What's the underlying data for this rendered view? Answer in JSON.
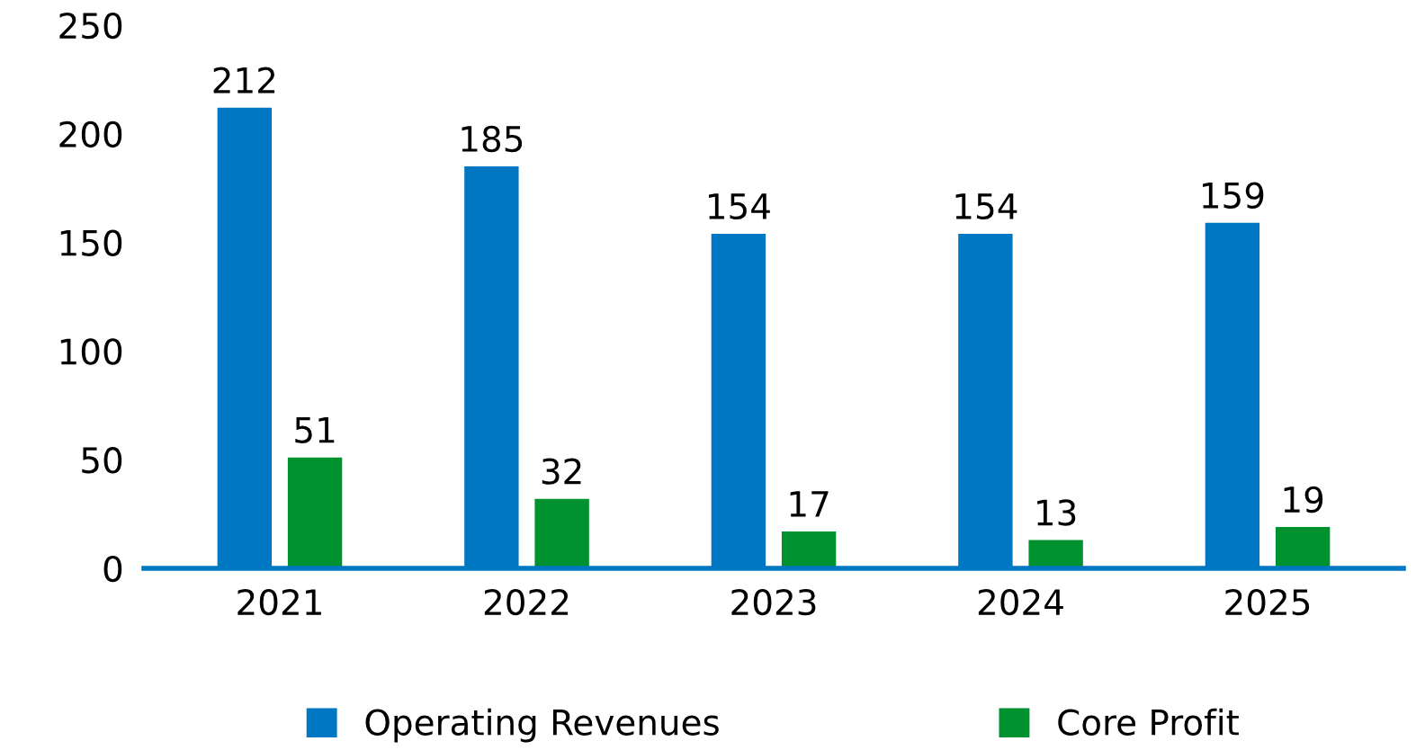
{
  "chart_data": {
    "type": "bar",
    "categories": [
      "2021",
      "2022",
      "2023",
      "2024",
      "2025"
    ],
    "series": [
      {
        "name": "Operating Revenues",
        "color": "#0077c2",
        "values": [
          212,
          185,
          154,
          154,
          159
        ]
      },
      {
        "name": "Core Profit",
        "color": "#00922e",
        "values": [
          51,
          32,
          17,
          13,
          19
        ]
      }
    ],
    "ylim": [
      0,
      250
    ],
    "yticks": [
      0,
      50,
      100,
      150,
      200,
      250
    ],
    "data_labels": true,
    "grid": false,
    "legend": "bottom"
  }
}
